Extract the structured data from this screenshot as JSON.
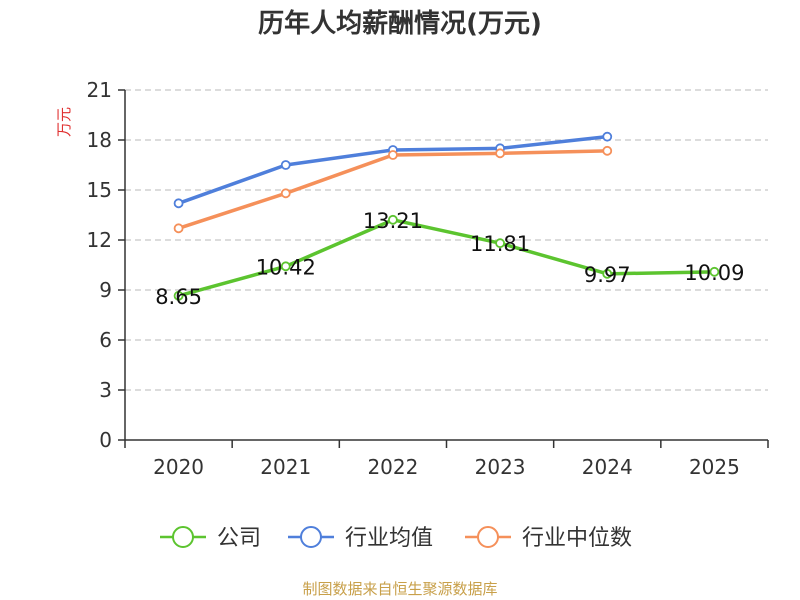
{
  "chart_data": {
    "type": "line",
    "title": "历年人均薪酬情况(万元)",
    "ylabel": "万元",
    "xlabel": "",
    "categories": [
      "2020",
      "2021",
      "2022",
      "2023",
      "2024",
      "2025"
    ],
    "y_ticks": [
      "0",
      "3",
      "6",
      "9",
      "12",
      "15",
      "18",
      "21"
    ],
    "ylim": [
      0,
      21
    ],
    "grid": true,
    "legend_position": "bottom",
    "series": [
      {
        "name": "公司",
        "color": "#5cc42f",
        "values": [
          8.65,
          10.42,
          13.21,
          11.81,
          9.97,
          10.09
        ],
        "labels": [
          "8.65",
          "10.42",
          "13.21",
          "11.81",
          "9.97",
          "10.09"
        ]
      },
      {
        "name": "行业均值",
        "color": "#4f7fdb",
        "values": [
          14.2,
          16.5,
          17.4,
          17.5,
          18.2,
          null
        ]
      },
      {
        "name": "行业中位数",
        "color": "#f5905a",
        "values": [
          12.7,
          14.8,
          17.1,
          17.2,
          17.35,
          null
        ]
      }
    ]
  },
  "source": "制图数据来自恒生聚源数据库",
  "colors": {
    "ylabel": "#e03030",
    "source": "#c8a04a",
    "axis": "#333333",
    "grid": "#c8c8c8"
  }
}
